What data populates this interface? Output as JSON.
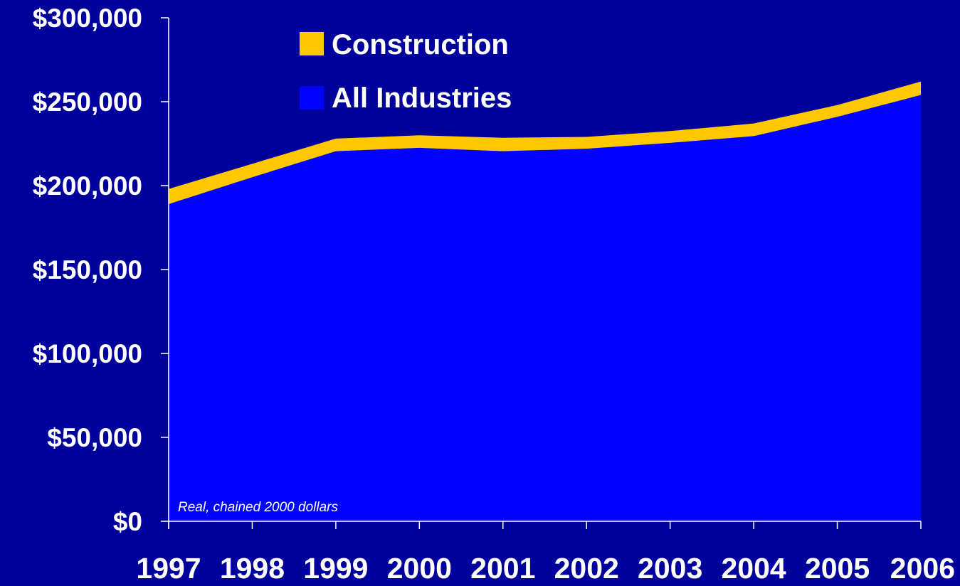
{
  "chart_data": {
    "type": "area",
    "x": [
      "1997",
      "1998",
      "1999",
      "2000",
      "2001",
      "2002",
      "2003",
      "2004",
      "2005",
      "2006"
    ],
    "series": [
      {
        "name": "Construction",
        "color": "#ffc800",
        "values": [
          198000,
          213000,
          228000,
          230000,
          228500,
          229000,
          232500,
          237000,
          248000,
          262000
        ]
      },
      {
        "name": "All Industries",
        "color": "#0000ff",
        "values": [
          189000,
          205000,
          220500,
          222500,
          220500,
          222000,
          225500,
          229500,
          241000,
          254000
        ]
      }
    ],
    "ylim": [
      0,
      300000
    ],
    "yticks": [
      0,
      50000,
      100000,
      150000,
      200000,
      250000,
      300000
    ],
    "ytick_labels": [
      "$0",
      "$50,000",
      "$100,000",
      "$150,000",
      "$200,000",
      "$250,000",
      "$300,000"
    ],
    "annotation": "Real, chained 2000 dollars",
    "legend_position": "top-left",
    "grid": false,
    "axis_color": "#ffffff",
    "background": "#00009a"
  }
}
